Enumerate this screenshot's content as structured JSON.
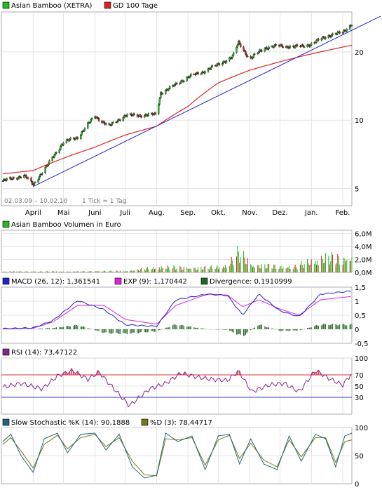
{
  "chart_data": [
    {
      "type": "line",
      "panel": "price",
      "legend": [
        {
          "name": "Asian Bamboo (XETRA)",
          "color": "#22bb22"
        },
        {
          "name": "GD 100 Tage",
          "color": "#dd2222"
        }
      ],
      "date_range_label": "02.03.09 – 10.02.10",
      "tick_label": "1 Tick = 1 Tag",
      "x_tick_labels": [
        "April",
        "Mai",
        "Juni",
        "Juli",
        "Aug.",
        "Sep.",
        "Okt.",
        "Nov.",
        "Dez.",
        "Jan.",
        "Feb."
      ],
      "y_scale": "log",
      "y_ticks": [
        5,
        10,
        20
      ],
      "ylim": [
        4.2,
        30
      ],
      "series": [
        {
          "name": "Asian Bamboo (XETRA)",
          "color": "#22bb22",
          "x": [
            "2009-03-02",
            "2009-03-23",
            "2009-04-01",
            "2009-04-15",
            "2009-05-01",
            "2009-05-15",
            "2009-06-01",
            "2009-06-15",
            "2009-07-01",
            "2009-07-15",
            "2009-08-01",
            "2009-08-05",
            "2009-08-15",
            "2009-09-01",
            "2009-09-15",
            "2009-10-01",
            "2009-10-15",
            "2009-10-21",
            "2009-11-01",
            "2009-11-15",
            "2009-12-01",
            "2009-12-15",
            "2010-01-01",
            "2010-01-15",
            "2010-02-01",
            "2010-02-10"
          ],
          "values": [
            5.4,
            5.7,
            5.2,
            6.3,
            8.0,
            8.4,
            10.4,
            9.4,
            10.5,
            10.5,
            10.6,
            13.2,
            13.9,
            15.5,
            16.3,
            17.6,
            19.0,
            22.0,
            18.5,
            20.8,
            21.3,
            21.0,
            21.6,
            23.4,
            24.4,
            26.6
          ]
        },
        {
          "name": "GD 100 Tage",
          "color": "#dd2222",
          "x": [
            "2009-03-02",
            "2009-04-01",
            "2009-05-01",
            "2009-06-01",
            "2009-07-01",
            "2009-08-01",
            "2009-09-01",
            "2009-10-01",
            "2009-11-01",
            "2009-12-01",
            "2010-01-01",
            "2010-02-10"
          ],
          "values": [
            5.8,
            6.0,
            6.8,
            7.6,
            8.6,
            9.4,
            11.5,
            14.6,
            16.6,
            18.1,
            19.6,
            21.4
          ]
        },
        {
          "name": "Trendlinie",
          "color": "#2222cc",
          "x": [
            "2009-04-01",
            "2010-02-10"
          ],
          "values": [
            5.1,
            24.9
          ]
        }
      ]
    },
    {
      "type": "bar",
      "panel": "volume",
      "title": "Asian Bamboo Volumen in Euro",
      "color": "#22bb22",
      "y_tick_labels": [
        "6,0M",
        "4,0M",
        "2,0M",
        "0,0M"
      ],
      "ylim": [
        0,
        6.5
      ],
      "x": [
        "2009-04-20",
        "2009-05-15",
        "2009-06-05",
        "2009-07-01",
        "2009-08-05",
        "2009-08-25",
        "2009-09-15",
        "2009-10-10",
        "2009-10-21",
        "2009-11-05",
        "2009-11-25",
        "2009-12-15",
        "2010-01-10",
        "2010-01-20",
        "2010-02-01",
        "2010-02-08"
      ],
      "values": [
        0.2,
        0.2,
        0.3,
        0.3,
        1.2,
        1.1,
        1.0,
        1.5,
        4.4,
        1.6,
        1.4,
        1.2,
        3.2,
        3.3,
        3.1,
        3.4
      ]
    },
    {
      "type": "line",
      "panel": "macd",
      "legend": [
        {
          "name": "MACD (26, 12): 1,361541",
          "color": "#2222cc"
        },
        {
          "name": "EXP (9): 1,170442",
          "color": "#dd22dd"
        },
        {
          "name": "Divergence: 0,1910999",
          "color": "#226622"
        }
      ],
      "y_tick_labels": [
        "1,5",
        "1",
        "0,5",
        "0",
        "-0,5"
      ],
      "ylim": [
        -0.5,
        1.5
      ],
      "x": [
        "2009-03-02",
        "2009-04-01",
        "2009-04-20",
        "2009-05-15",
        "2009-06-10",
        "2009-07-01",
        "2009-08-01",
        "2009-08-20",
        "2009-09-20",
        "2009-10-10",
        "2009-10-25",
        "2009-11-10",
        "2009-12-01",
        "2009-12-20",
        "2010-01-10",
        "2010-02-10"
      ],
      "series": [
        {
          "name": "MACD",
          "color": "#2222cc",
          "values": [
            0.02,
            0.05,
            0.3,
            1.02,
            0.7,
            0.16,
            0.1,
            1.05,
            1.25,
            1.2,
            0.5,
            1.25,
            0.65,
            0.45,
            1.25,
            1.36
          ]
        },
        {
          "name": "EXP",
          "color": "#dd22dd",
          "values": [
            0.01,
            0.04,
            0.25,
            0.85,
            0.85,
            0.35,
            0.18,
            0.85,
            1.25,
            1.22,
            0.8,
            1.05,
            0.72,
            0.5,
            1.05,
            1.17
          ]
        },
        {
          "name": "Divergence",
          "color": "#226622",
          "values": [
            0.01,
            0.01,
            0.05,
            0.17,
            -0.15,
            -0.19,
            -0.08,
            0.2,
            0.0,
            -0.02,
            -0.3,
            0.2,
            -0.07,
            -0.05,
            0.2,
            0.19
          ]
        }
      ]
    },
    {
      "type": "line",
      "panel": "rsi",
      "legend": [
        {
          "name": "RSI (14): 73,47122",
          "color": "#882288"
        }
      ],
      "y_tick_labels": [
        "100",
        "70",
        "50",
        "30"
      ],
      "ylim": [
        0,
        100
      ],
      "levels": [
        70,
        30
      ],
      "x": [
        "2009-03-02",
        "2009-03-20",
        "2009-04-10",
        "2009-04-25",
        "2009-05-10",
        "2009-05-25",
        "2009-06-05",
        "2009-06-20",
        "2009-07-05",
        "2009-07-25",
        "2009-08-10",
        "2009-08-25",
        "2009-09-10",
        "2009-09-25",
        "2009-10-10",
        "2009-10-21",
        "2009-11-03",
        "2009-11-20",
        "2009-12-05",
        "2009-12-20",
        "2010-01-05",
        "2010-01-20",
        "2010-02-01",
        "2010-02-10"
      ],
      "values": [
        48,
        55,
        45,
        68,
        78,
        62,
        75,
        45,
        15,
        45,
        55,
        73,
        66,
        62,
        60,
        77,
        40,
        52,
        55,
        40,
        78,
        62,
        52,
        73
      ]
    },
    {
      "type": "line",
      "panel": "stochastic",
      "legend": [
        {
          "name": "Slow Stochastic %K (14): 90,1888",
          "color": "#226677"
        },
        {
          "name": "%D (3): 78,44717",
          "color": "#777722"
        }
      ],
      "y_tick_labels": [
        "100",
        "50",
        "0"
      ],
      "ylim": [
        0,
        100
      ],
      "x": [
        "2009-03-02",
        "2009-03-10",
        "2009-03-20",
        "2009-04-01",
        "2009-04-12",
        "2009-04-25",
        "2009-05-05",
        "2009-05-18",
        "2009-06-01",
        "2009-06-12",
        "2009-06-25",
        "2009-07-08",
        "2009-07-20",
        "2009-08-01",
        "2009-08-10",
        "2009-08-22",
        "2009-09-05",
        "2009-09-18",
        "2009-10-01",
        "2009-10-12",
        "2009-10-22",
        "2009-11-02",
        "2009-11-15",
        "2009-11-28",
        "2009-12-10",
        "2009-12-22",
        "2010-01-05",
        "2010-01-15",
        "2010-01-25",
        "2010-02-03",
        "2010-02-10"
      ],
      "series": [
        {
          "name": "%K",
          "color": "#226677",
          "values": [
            75,
            88,
            50,
            20,
            80,
            90,
            55,
            88,
            90,
            60,
            88,
            30,
            10,
            15,
            90,
            75,
            85,
            25,
            85,
            88,
            35,
            80,
            35,
            25,
            85,
            40,
            88,
            80,
            30,
            85,
            90
          ]
        },
        {
          "name": "%D",
          "color": "#777722",
          "values": [
            70,
            82,
            58,
            28,
            70,
            86,
            62,
            82,
            88,
            66,
            82,
            40,
            16,
            14,
            80,
            78,
            82,
            33,
            78,
            86,
            45,
            72,
            42,
            30,
            78,
            48,
            82,
            82,
            38,
            75,
            78
          ]
        }
      ]
    }
  ]
}
